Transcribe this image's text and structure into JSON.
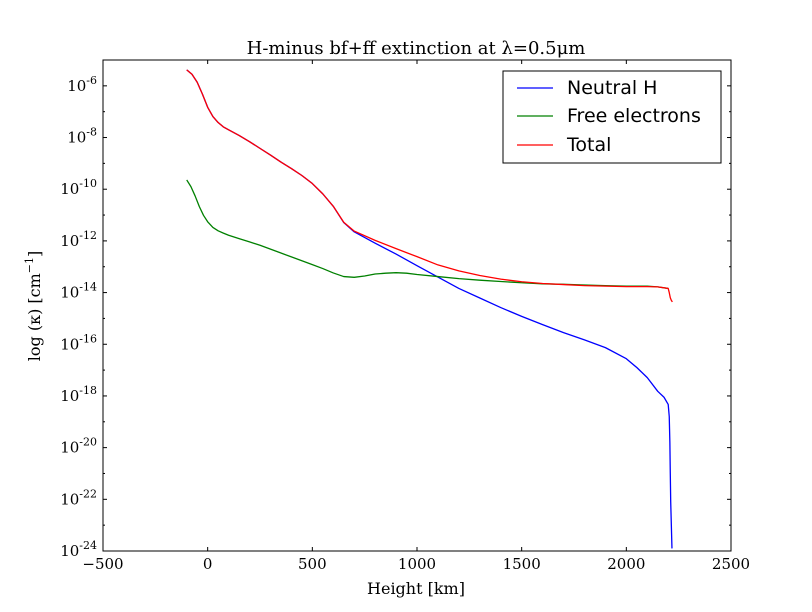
{
  "chart_data": {
    "type": "line",
    "title": "H-minus bf+ff extinction at λ=0.5μm",
    "xlabel": "Height [km]",
    "ylabel": "log (κ) [cm",
    "ylabel_sup": "−1",
    "ylabel_end": "]",
    "xlim": [
      -500,
      2500
    ],
    "ylim_log10": [
      -24,
      -5
    ],
    "y_scale": "log",
    "grid": false,
    "legend_position": "top-right",
    "x_ticks": [
      {
        "value": -500,
        "label": "−500"
      },
      {
        "value": 0,
        "label": "0"
      },
      {
        "value": 500,
        "label": "500"
      },
      {
        "value": 1000,
        "label": "1000"
      },
      {
        "value": 1500,
        "label": "1500"
      },
      {
        "value": 2000,
        "label": "2000"
      },
      {
        "value": 2500,
        "label": "2500"
      }
    ],
    "y_ticks": [
      {
        "value": -6,
        "base": "10",
        "exp": "-6"
      },
      {
        "value": -8,
        "base": "10",
        "exp": "-8"
      },
      {
        "value": -10,
        "base": "10",
        "exp": "-10"
      },
      {
        "value": -12,
        "base": "10",
        "exp": "-12"
      },
      {
        "value": -14,
        "base": "10",
        "exp": "-14"
      },
      {
        "value": -16,
        "base": "10",
        "exp": "-16"
      },
      {
        "value": -18,
        "base": "10",
        "exp": "-18"
      },
      {
        "value": -20,
        "base": "10",
        "exp": "-20"
      },
      {
        "value": -22,
        "base": "10",
        "exp": "-22"
      },
      {
        "value": -24,
        "base": "10",
        "exp": "-24"
      }
    ],
    "series": [
      {
        "name": "Neutral H",
        "color": "#0000ff",
        "x": [
          -100,
          -75,
          -50,
          -25,
          0,
          25,
          50,
          75,
          100,
          150,
          200,
          250,
          300,
          350,
          400,
          450,
          500,
          550,
          600,
          650,
          700,
          800,
          900,
          1000,
          1100,
          1200,
          1300,
          1400,
          1500,
          1600,
          1700,
          1800,
          1900,
          2000,
          2050,
          2100,
          2150,
          2180,
          2200,
          2205,
          2208,
          2210,
          2212,
          2215,
          2218
        ],
        "y_log10": [
          -5.38,
          -5.55,
          -5.86,
          -6.32,
          -6.83,
          -7.19,
          -7.42,
          -7.59,
          -7.7,
          -7.92,
          -8.16,
          -8.42,
          -8.68,
          -8.95,
          -9.2,
          -9.47,
          -9.78,
          -10.18,
          -10.66,
          -11.29,
          -11.65,
          -12.09,
          -12.51,
          -12.96,
          -13.4,
          -13.84,
          -14.21,
          -14.58,
          -14.92,
          -15.24,
          -15.55,
          -15.83,
          -16.13,
          -16.56,
          -16.9,
          -17.29,
          -17.82,
          -18.05,
          -18.33,
          -18.8,
          -19.8,
          -21.0,
          -22.1,
          -23.0,
          -23.9
        ]
      },
      {
        "name": "Free electrons",
        "color": "#008000",
        "x": [
          -100,
          -80,
          -60,
          -40,
          -20,
          0,
          25,
          50,
          75,
          100,
          150,
          200,
          250,
          300,
          350,
          400,
          450,
          500,
          550,
          600,
          650,
          700,
          750,
          800,
          850,
          900,
          950,
          1000,
          1100,
          1200,
          1300,
          1400,
          1500,
          1600,
          1700,
          1800,
          1900,
          2000,
          2100,
          2150,
          2200
        ],
        "y_log10": [
          -9.64,
          -9.9,
          -10.26,
          -10.67,
          -11.01,
          -11.26,
          -11.48,
          -11.61,
          -11.7,
          -11.78,
          -11.91,
          -12.04,
          -12.17,
          -12.32,
          -12.47,
          -12.62,
          -12.77,
          -12.92,
          -13.07,
          -13.24,
          -13.38,
          -13.41,
          -13.36,
          -13.28,
          -13.25,
          -13.23,
          -13.25,
          -13.3,
          -13.38,
          -13.46,
          -13.52,
          -13.57,
          -13.62,
          -13.66,
          -13.68,
          -13.71,
          -13.73,
          -13.75,
          -13.75,
          -13.78,
          -13.84
        ]
      },
      {
        "name": "Total",
        "color": "#ff0000",
        "x": [
          -100,
          -75,
          -50,
          -25,
          0,
          25,
          50,
          75,
          100,
          150,
          200,
          250,
          300,
          350,
          400,
          450,
          500,
          550,
          600,
          650,
          700,
          800,
          900,
          1000,
          1100,
          1200,
          1300,
          1400,
          1500,
          1600,
          1700,
          1800,
          1900,
          2000,
          2100,
          2150,
          2200,
          2205,
          2210,
          2215,
          2220
        ],
        "y_log10": [
          -5.38,
          -5.55,
          -5.86,
          -6.32,
          -6.83,
          -7.19,
          -7.42,
          -7.59,
          -7.7,
          -7.92,
          -8.16,
          -8.42,
          -8.68,
          -8.95,
          -9.2,
          -9.47,
          -9.78,
          -10.18,
          -10.66,
          -11.28,
          -11.62,
          -11.98,
          -12.3,
          -12.61,
          -12.93,
          -13.16,
          -13.34,
          -13.48,
          -13.58,
          -13.65,
          -13.69,
          -13.73,
          -13.75,
          -13.77,
          -13.77,
          -13.78,
          -13.84,
          -14.0,
          -14.2,
          -14.3,
          -14.36
        ]
      }
    ]
  }
}
